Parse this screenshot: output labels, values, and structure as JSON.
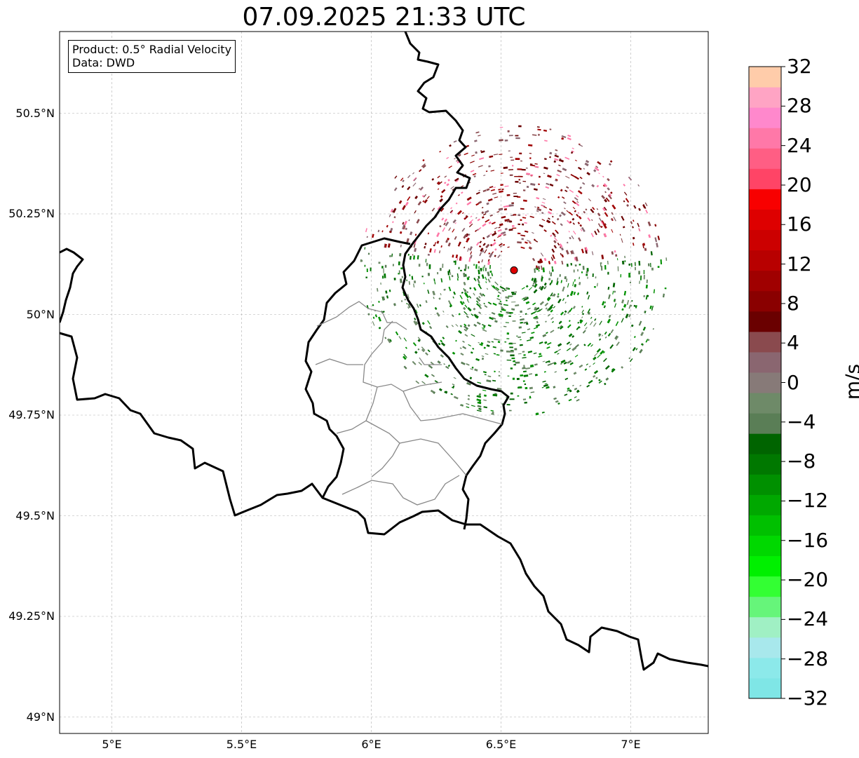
{
  "title": "07.09.2025 21:33 UTC",
  "info": {
    "product": "Product: 0.5° Radial Velocity",
    "data": "Data: DWD"
  },
  "lat_labels": [
    "50.5°N",
    "50.25°N",
    "50°N",
    "49.75°N",
    "49.5°N",
    "49.25°N",
    "49°N"
  ],
  "lon_labels": [
    "5°E",
    "5.5°E",
    "6°E",
    "6.5°E",
    "7°E"
  ],
  "map_extent": {
    "lon": [
      4.8,
      7.3
    ],
    "lat": [
      48.95,
      50.7
    ]
  },
  "radar_site": {
    "lon": 6.55,
    "lat": 50.11,
    "color": "#e00000"
  },
  "colorbar": {
    "label": "m/s",
    "range": [
      -32,
      32
    ],
    "tick_labels": [
      "32",
      "28",
      "24",
      "20",
      "16",
      "12",
      "8",
      "4",
      "0",
      "−4",
      "−8",
      "−12",
      "−16",
      "−20",
      "−24",
      "−28",
      "−32"
    ],
    "colors": [
      "#7fe6e6",
      "#8ce9ea",
      "#a8e8ec",
      "#a0f0c4",
      "#66f57a",
      "#33ff33",
      "#00f000",
      "#00d800",
      "#00c000",
      "#00a800",
      "#009000",
      "#007800",
      "#006400",
      "#5a7e56",
      "#6e8a68",
      "#877a78",
      "#8a6670",
      "#8a4a4e",
      "#6a0000",
      "#8a0000",
      "#a00000",
      "#b80000",
      "#cc0000",
      "#de0000",
      "#f80000",
      "#ff4466",
      "#ff5e84",
      "#ff78a8",
      "#ff88cc",
      "#ffa4c4",
      "#ffccaa"
    ]
  }
}
